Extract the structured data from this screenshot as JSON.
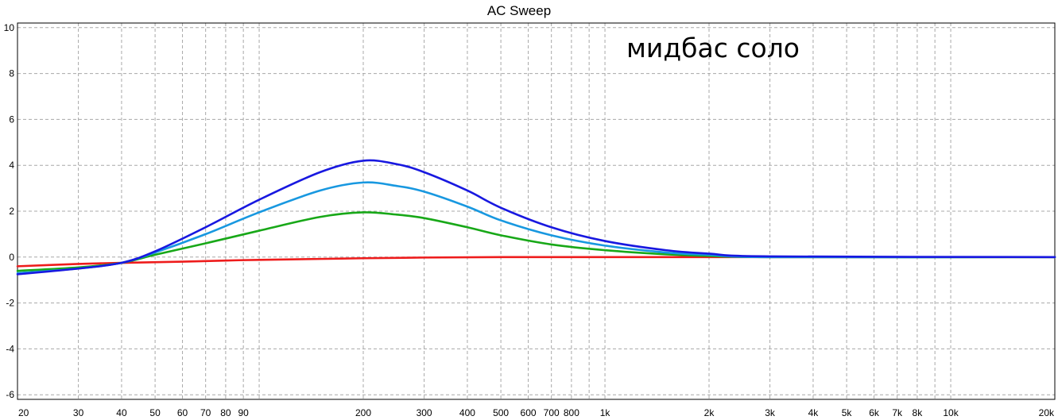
{
  "chart_data": {
    "type": "line",
    "title": "AC Sweep",
    "annotation": "мидбас соло",
    "xscale": "log",
    "xlim": [
      20,
      20000
    ],
    "ylim": [
      -6.2,
      10.2
    ],
    "grid": true,
    "x_major_ticks": [
      {
        "value": 20,
        "label": "20"
      },
      {
        "value": 30,
        "label": "30"
      },
      {
        "value": 40,
        "label": "40"
      },
      {
        "value": 50,
        "label": "50"
      },
      {
        "value": 60,
        "label": "60"
      },
      {
        "value": 70,
        "label": "70"
      },
      {
        "value": 80,
        "label": "80"
      },
      {
        "value": 90,
        "label": "90"
      },
      {
        "value": 200,
        "label": "200"
      },
      {
        "value": 300,
        "label": "300"
      },
      {
        "value": 400,
        "label": "400"
      },
      {
        "value": 500,
        "label": "500"
      },
      {
        "value": 600,
        "label": "600"
      },
      {
        "value": 700,
        "label": "700"
      },
      {
        "value": 800,
        "label": "800"
      },
      {
        "value": 1000,
        "label": "1k"
      },
      {
        "value": 2000,
        "label": "2k"
      },
      {
        "value": 3000,
        "label": "3k"
      },
      {
        "value": 4000,
        "label": "4k"
      },
      {
        "value": 5000,
        "label": "5k"
      },
      {
        "value": 6000,
        "label": "6k"
      },
      {
        "value": 7000,
        "label": "7k"
      },
      {
        "value": 8000,
        "label": "8k"
      },
      {
        "value": 10000,
        "label": "10k"
      },
      {
        "value": 20000,
        "label": "20k"
      }
    ],
    "x_minor_ticks": [
      100,
      900,
      9000
    ],
    "y_ticks": [
      {
        "value": 10,
        "label": "10"
      },
      {
        "value": 8,
        "label": "8"
      },
      {
        "value": 6,
        "label": "6"
      },
      {
        "value": 4,
        "label": "4"
      },
      {
        "value": 2,
        "label": "2"
      },
      {
        "value": 0,
        "label": "0"
      },
      {
        "value": -2,
        "label": "-2"
      },
      {
        "value": -4,
        "label": "-4"
      },
      {
        "value": -6,
        "label": "-6"
      }
    ],
    "series": [
      {
        "color": "#ee1c1c",
        "points": [
          [
            20,
            -0.4
          ],
          [
            30,
            -0.3
          ],
          [
            40,
            -0.25
          ],
          [
            60,
            -0.2
          ],
          [
            80,
            -0.15
          ],
          [
            100,
            -0.12
          ],
          [
            150,
            -0.08
          ],
          [
            200,
            -0.05
          ],
          [
            300,
            -0.02
          ],
          [
            500,
            0.0
          ],
          [
            1000,
            0.0
          ],
          [
            3000,
            0.0
          ],
          [
            20000,
            0.0
          ]
        ]
      },
      {
        "color": "#18a818",
        "points": [
          [
            20,
            -0.6
          ],
          [
            30,
            -0.45
          ],
          [
            40,
            -0.25
          ],
          [
            50,
            0.1
          ],
          [
            70,
            0.6
          ],
          [
            100,
            1.15
          ],
          [
            150,
            1.75
          ],
          [
            200,
            1.95
          ],
          [
            250,
            1.85
          ],
          [
            300,
            1.7
          ],
          [
            400,
            1.3
          ],
          [
            500,
            0.95
          ],
          [
            700,
            0.55
          ],
          [
            1000,
            0.3
          ],
          [
            1500,
            0.12
          ],
          [
            2000,
            0.05
          ],
          [
            3000,
            0.0
          ],
          [
            20000,
            0.0
          ]
        ]
      },
      {
        "color": "#1898e0",
        "points": [
          [
            20,
            -0.7
          ],
          [
            30,
            -0.5
          ],
          [
            40,
            -0.25
          ],
          [
            50,
            0.2
          ],
          [
            70,
            1.0
          ],
          [
            100,
            1.95
          ],
          [
            150,
            2.9
          ],
          [
            200,
            3.25
          ],
          [
            250,
            3.1
          ],
          [
            300,
            2.85
          ],
          [
            400,
            2.2
          ],
          [
            500,
            1.6
          ],
          [
            700,
            0.95
          ],
          [
            1000,
            0.5
          ],
          [
            1500,
            0.2
          ],
          [
            2000,
            0.1
          ],
          [
            3000,
            0.0
          ],
          [
            20000,
            0.0
          ]
        ]
      },
      {
        "color": "#1818e0",
        "points": [
          [
            20,
            -0.75
          ],
          [
            30,
            -0.5
          ],
          [
            40,
            -0.25
          ],
          [
            50,
            0.25
          ],
          [
            70,
            1.3
          ],
          [
            100,
            2.5
          ],
          [
            150,
            3.7
          ],
          [
            200,
            4.2
          ],
          [
            250,
            4.05
          ],
          [
            300,
            3.7
          ],
          [
            400,
            2.9
          ],
          [
            500,
            2.15
          ],
          [
            700,
            1.3
          ],
          [
            1000,
            0.7
          ],
          [
            1500,
            0.3
          ],
          [
            2000,
            0.15
          ],
          [
            3000,
            0.03
          ],
          [
            20000,
            0.0
          ]
        ]
      }
    ]
  }
}
